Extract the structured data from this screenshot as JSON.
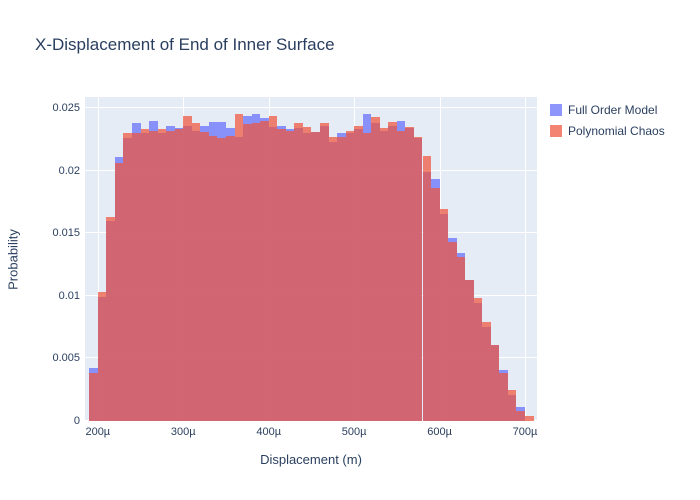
{
  "title": "X-Displacement of End of Inner Surface",
  "colors": {
    "plot_background": "#E5ECF6",
    "page_background": "#ffffff",
    "grid": "#ffffff",
    "text": "#2a3f5f",
    "full_order_model": "#636EFA",
    "polynomial_chaos": "#EF553B",
    "series_opacity": 0.72
  },
  "legend": {
    "items": [
      {
        "label": "Full Order Model",
        "color": "rgba(99,110,250,0.72)"
      },
      {
        "label": "Polynomial Chaos",
        "color": "rgba(239,85,59,0.72)"
      }
    ]
  },
  "chart_data": {
    "type": "bar",
    "subtype": "overlaid-histogram",
    "title": "X-Displacement of End of Inner Surface",
    "xlabel": "Displacement (m)",
    "ylabel": "Probability",
    "x_range_um": [
      185,
      714
    ],
    "y_range": [
      0,
      0.02588
    ],
    "grid": true,
    "legend_position": "right-top",
    "x_ticks": [
      {
        "value_um": 200,
        "label": "200µ"
      },
      {
        "value_um": 300,
        "label": "300µ"
      },
      {
        "value_um": 400,
        "label": "400µ"
      },
      {
        "value_um": 500,
        "label": "500µ"
      },
      {
        "value_um": 600,
        "label": "600µ"
      },
      {
        "value_um": 700,
        "label": "700µ"
      }
    ],
    "y_ticks": [
      {
        "value": 0,
        "label": "0"
      },
      {
        "value": 0.005,
        "label": "0.005"
      },
      {
        "value": 0.01,
        "label": "0.01"
      },
      {
        "value": 0.015,
        "label": "0.015"
      },
      {
        "value": 0.02,
        "label": "0.02"
      },
      {
        "value": 0.025,
        "label": "0.025"
      }
    ],
    "bin_start_um": 190,
    "bin_width_um": 10,
    "series": [
      {
        "name": "Full Order Model",
        "color": "#636EFA",
        "opacity": 0.72,
        "values": [
          0.0042,
          0.0099,
          0.016,
          0.0211,
          0.0226,
          0.0238,
          0.023,
          0.024,
          0.023,
          0.0236,
          0.0234,
          0.0236,
          0.0232,
          0.0236,
          0.0239,
          0.0239,
          0.0234,
          0.0227,
          0.0244,
          0.0245,
          0.0242,
          0.0235,
          0.0236,
          0.0233,
          0.0234,
          0.023,
          0.0231,
          0.0236,
          0.0223,
          0.023,
          0.023,
          0.0233,
          0.0245,
          0.0238,
          0.0232,
          0.0236,
          0.024,
          0.0234,
          0.0226,
          0.0199,
          0.0193,
          0.0165,
          0.0146,
          0.0134,
          0.0113,
          0.0094,
          0.0075,
          0.0061,
          0.0041,
          0.0021,
          0.0011,
          0.0
        ]
      },
      {
        "name": "Polynomial Chaos",
        "color": "#EF553B",
        "opacity": 0.72,
        "values": [
          0.0038,
          0.0103,
          0.0163,
          0.0206,
          0.023,
          0.023,
          0.0233,
          0.0232,
          0.0233,
          0.0232,
          0.0233,
          0.0244,
          0.0238,
          0.0231,
          0.0228,
          0.0226,
          0.0228,
          0.0245,
          0.0237,
          0.0238,
          0.024,
          0.0244,
          0.0233,
          0.0232,
          0.0238,
          0.0235,
          0.0231,
          0.0238,
          0.0227,
          0.0227,
          0.0232,
          0.0236,
          0.023,
          0.0243,
          0.0234,
          0.0239,
          0.0232,
          0.0235,
          0.0227,
          0.0212,
          0.0186,
          0.0169,
          0.0143,
          0.0131,
          0.0113,
          0.0098,
          0.0079,
          0.0061,
          0.0038,
          0.0025,
          0.0008,
          0.0004
        ]
      }
    ]
  }
}
